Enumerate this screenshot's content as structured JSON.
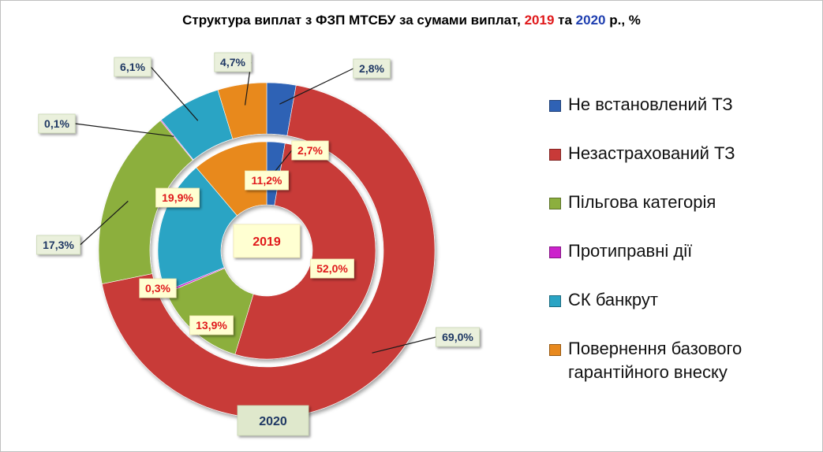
{
  "title": {
    "prefix": "Структура  виплат з ФЗП МТСБУ за сумами виплат, ",
    "year1": "2019",
    "conj": " та ",
    "year2": "2020",
    "suffix": " р., %"
  },
  "chart_data": {
    "type": "pie",
    "subtype": "doughnut",
    "categories": [
      "Не встановлений ТЗ",
      "Незастрахований ТЗ",
      "Пільгова категорія",
      "Протиправні дії",
      "СК банкрут",
      "Повернення базового гарантійного внеску"
    ],
    "series": [
      {
        "name": "2019",
        "ring": "inner",
        "values": [
          2.7,
          52.0,
          13.9,
          0.3,
          19.9,
          11.2
        ],
        "labels": [
          "2,7%",
          "52,0%",
          "13,9%",
          "0,3%",
          "19,9%",
          "11,2%"
        ]
      },
      {
        "name": "2020",
        "ring": "outer",
        "values": [
          2.8,
          69.0,
          17.3,
          0.1,
          6.1,
          4.7
        ],
        "labels": [
          "2,8%",
          "69,0%",
          "17,3%",
          "0,1%",
          "6,1%",
          "4,7%"
        ]
      }
    ],
    "colors": [
      "#2f62b5",
      "#c83a38",
      "#8caf3e",
      "#cc22cc",
      "#2aa4c4",
      "#e8891e"
    ],
    "legend_lines": [
      [
        "Не встановлений ТЗ"
      ],
      [
        "Незастрахований ТЗ"
      ],
      [
        "Пільгова категорія"
      ],
      [
        "Протиправні дії"
      ],
      [
        "СК банкрут"
      ],
      [
        "Повернення базового",
        "гарантійного внеску"
      ]
    ],
    "legend_placement": "right"
  }
}
